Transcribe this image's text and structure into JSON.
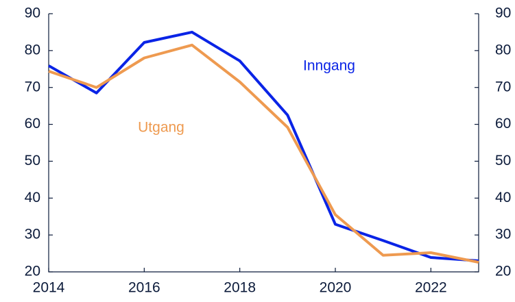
{
  "chart_data": {
    "type": "line",
    "x": [
      2014,
      2015,
      2016,
      2017,
      2018,
      2019,
      2020,
      2021,
      2022,
      2023
    ],
    "series": [
      {
        "name": "Inngang",
        "color": "#0a24e6",
        "values": [
          75.9,
          68.5,
          82.2,
          85,
          77.2,
          62.5,
          32.9,
          28.5,
          23.9,
          23
        ]
      },
      {
        "name": "Utgang",
        "color": "#ee9a50",
        "values": [
          74.4,
          70,
          78,
          81.5,
          71.5,
          59.2,
          35.5,
          24.5,
          25.2,
          22.6
        ]
      }
    ],
    "xlim": [
      2014,
      2023
    ],
    "xticks": [
      2014,
      2016,
      2018,
      2020,
      2022
    ],
    "ylim": [
      20,
      90
    ],
    "yticks": [
      20,
      30,
      40,
      50,
      60,
      70,
      80,
      90
    ],
    "y2lim": [
      20,
      90
    ],
    "y2ticks": [
      20,
      30,
      40,
      50,
      60,
      70,
      80,
      90
    ],
    "grid": false
  }
}
